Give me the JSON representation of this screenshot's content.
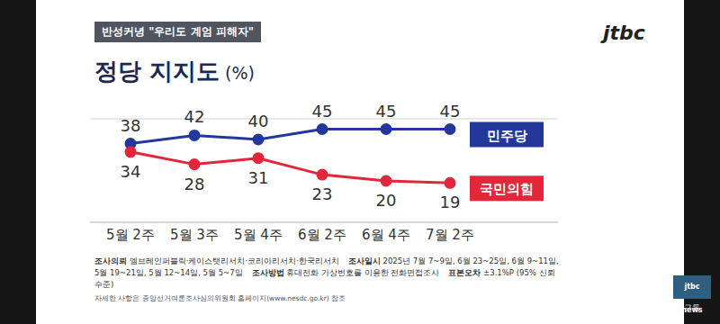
{
  "header": {
    "tag": "반성커녕 \"우리도 계엄 피해자\"",
    "logo": "jtbc"
  },
  "chart_data": {
    "type": "line",
    "title": "정당 지지도 (%)",
    "categories": [
      "5월 2주",
      "5월 3주",
      "5월 4주",
      "6월 2주",
      "6월 4주",
      "7월 2주"
    ],
    "series": [
      {
        "name": "민주당",
        "color": "#24379a",
        "values": [
          38,
          42,
          40,
          45,
          45,
          45
        ]
      },
      {
        "name": "국민의힘",
        "color": "#e3263a",
        "values": [
          34,
          28,
          31,
          23,
          20,
          19
        ]
      }
    ],
    "ylim": [
      0,
      50
    ],
    "yticks": [
      0,
      50
    ],
    "grid": true,
    "data_labels": true,
    "tick_labels": "x",
    "legend": "right",
    "marker": "circle"
  },
  "footer": {
    "items": [
      {
        "label": "조사의뢰",
        "text": "엠브레인퍼블릭·케이스탯리서치·코리아리서치·한국리서치"
      },
      {
        "label": "조사일시",
        "text": "2025년 7월 7~9일, 6월 23~25일, 6월 9~11일, 5월 19~21일, 5월 12~14일, 5월 5~7일"
      },
      {
        "label": "조사방법",
        "text": "휴대전화 가상번호를 이용한 전화면접조사"
      },
      {
        "label": "표본오차",
        "text": "±3.1%P (95% 신뢰수준)"
      }
    ],
    "note": "자세한 사항은 중앙선거여론조사심의위원회 홈페이지(www.nesdc.go.kr) 참조"
  },
  "badge": {
    "logo": "jtbc news",
    "text": "구독"
  }
}
